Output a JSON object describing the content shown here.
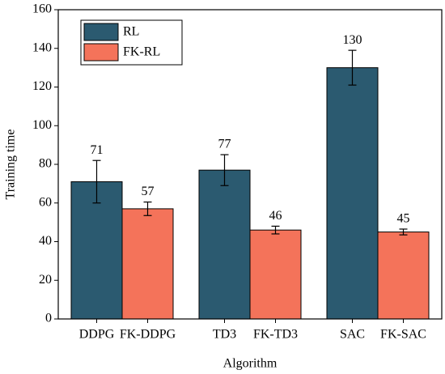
{
  "chart_data": {
    "type": "bar",
    "x_label": "Algorithm",
    "y_label": "Training time",
    "categories": [
      "DDPG",
      "FK-DDPG",
      "TD3",
      "FK-TD3",
      "SAC",
      "FK-SAC"
    ],
    "series": [
      {
        "name": "RL",
        "color": "#2b5a70",
        "values": [
          71,
          null,
          77,
          null,
          130,
          null
        ],
        "errors": [
          11,
          null,
          8,
          null,
          9,
          null
        ]
      },
      {
        "name": "FK-RL",
        "color": "#f4735a",
        "values": [
          null,
          57,
          null,
          46,
          null,
          45
        ],
        "errors": [
          null,
          3.5,
          null,
          2,
          null,
          1.5
        ]
      }
    ],
    "ylim": [
      0,
      160
    ],
    "yticks": [
      0,
      20,
      40,
      60,
      80,
      100,
      120,
      140,
      160
    ],
    "legend": "upper left"
  }
}
